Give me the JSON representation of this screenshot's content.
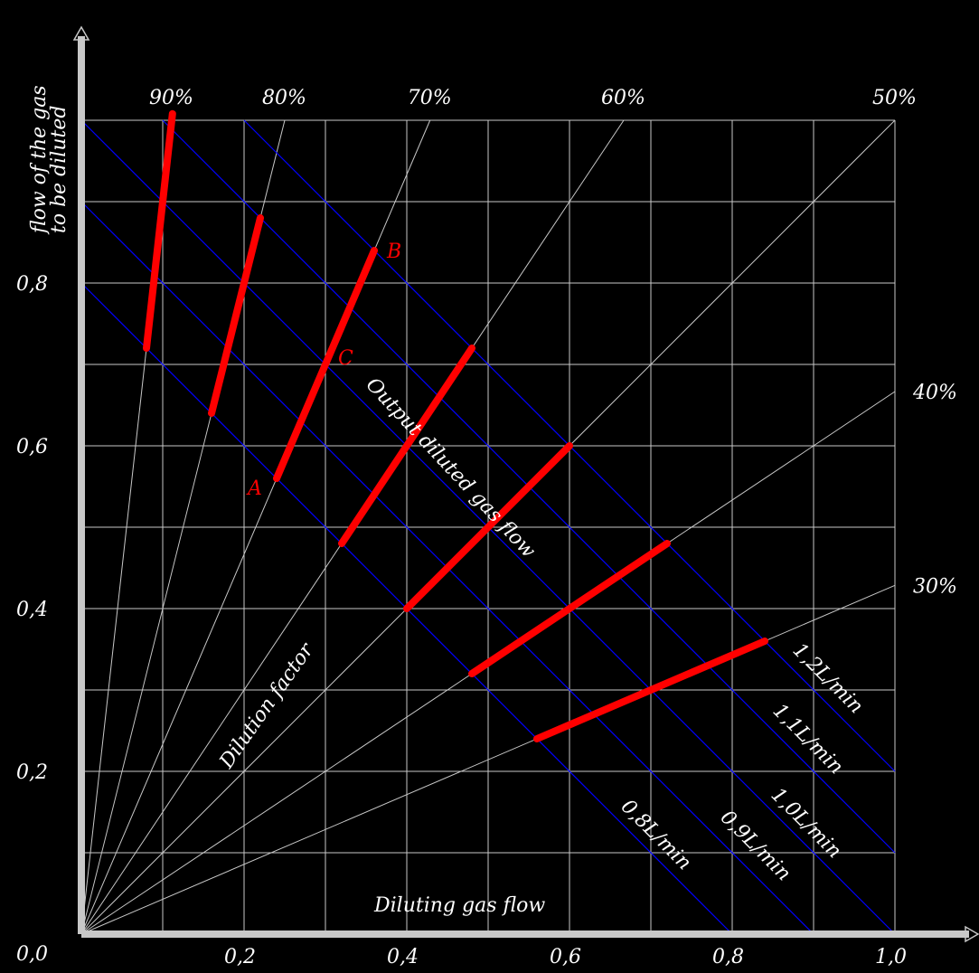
{
  "axes": {
    "x_title": "Diluting gas flow",
    "y_title_line1": "flow of the gas",
    "y_title_line2": "to be diluted",
    "x_ticks": [
      {
        "v": 0.2,
        "label": "0,2"
      },
      {
        "v": 0.4,
        "label": "0,4"
      },
      {
        "v": 0.6,
        "label": "0,6"
      },
      {
        "v": 0.8,
        "label": "0,8"
      },
      {
        "v": 1.0,
        "label": "1,0"
      }
    ],
    "y_ticks": [
      {
        "v": 0.2,
        "label": "0,2"
      },
      {
        "v": 0.4,
        "label": "0,4"
      },
      {
        "v": 0.6,
        "label": "0,6"
      },
      {
        "v": 0.8,
        "label": "0,8"
      }
    ],
    "origin_label": "0,0",
    "range": {
      "x": [
        0,
        1.0
      ],
      "y": [
        0,
        1.0
      ]
    },
    "grid_step": 0.1
  },
  "dilution_factors": [
    {
      "label": "90%",
      "fraction": 0.9
    },
    {
      "label": "80%",
      "fraction": 0.8
    },
    {
      "label": "70%",
      "fraction": 0.7
    },
    {
      "label": "60%",
      "fraction": 0.6
    },
    {
      "label": "50%",
      "fraction": 0.5
    },
    {
      "label": "40%",
      "fraction": 0.4
    },
    {
      "label": "30%",
      "fraction": 0.3
    }
  ],
  "flow_lines": [
    {
      "total": 0.8,
      "label": "0,8L/min"
    },
    {
      "total": 0.9,
      "label": "0,9L/min"
    },
    {
      "total": 1.0,
      "label": "1,0L/min"
    },
    {
      "total": 1.1,
      "label": "1,1L/min"
    },
    {
      "total": 1.2,
      "label": "1,2L/min"
    }
  ],
  "operating_ranges": [
    {
      "fraction": 0.9,
      "from_total": 0.8,
      "to_total": 1.12
    },
    {
      "fraction": 0.8,
      "from_total": 0.8,
      "to_total": 1.1
    },
    {
      "fraction": 0.7,
      "from_total": 0.8,
      "to_total": 1.2
    },
    {
      "fraction": 0.6,
      "from_total": 0.8,
      "to_total": 1.2
    },
    {
      "fraction": 0.5,
      "from_total": 0.8,
      "to_total": 1.2
    },
    {
      "fraction": 0.4,
      "from_total": 0.8,
      "to_total": 1.2
    },
    {
      "fraction": 0.3,
      "from_total": 0.8,
      "to_total": 1.2
    }
  ],
  "points": [
    {
      "label": "A",
      "fraction": 0.7,
      "total": 0.8
    },
    {
      "label": "C",
      "fraction": 0.7,
      "total": 1.0
    },
    {
      "label": "B",
      "fraction": 0.7,
      "total": 1.2
    }
  ],
  "annotations": {
    "output_flow": "Output diluted gas flow",
    "dilution_factor": "Dilution factor"
  },
  "colors": {
    "background": "#000000",
    "grid": "#c8c8c8",
    "axis": "#c8c8c8",
    "flow_line": "#0000ff",
    "range_segment": "#ff0000",
    "text": "#ffffff",
    "point_label": "#ff0000",
    "minor_green": "#66cc33"
  }
}
